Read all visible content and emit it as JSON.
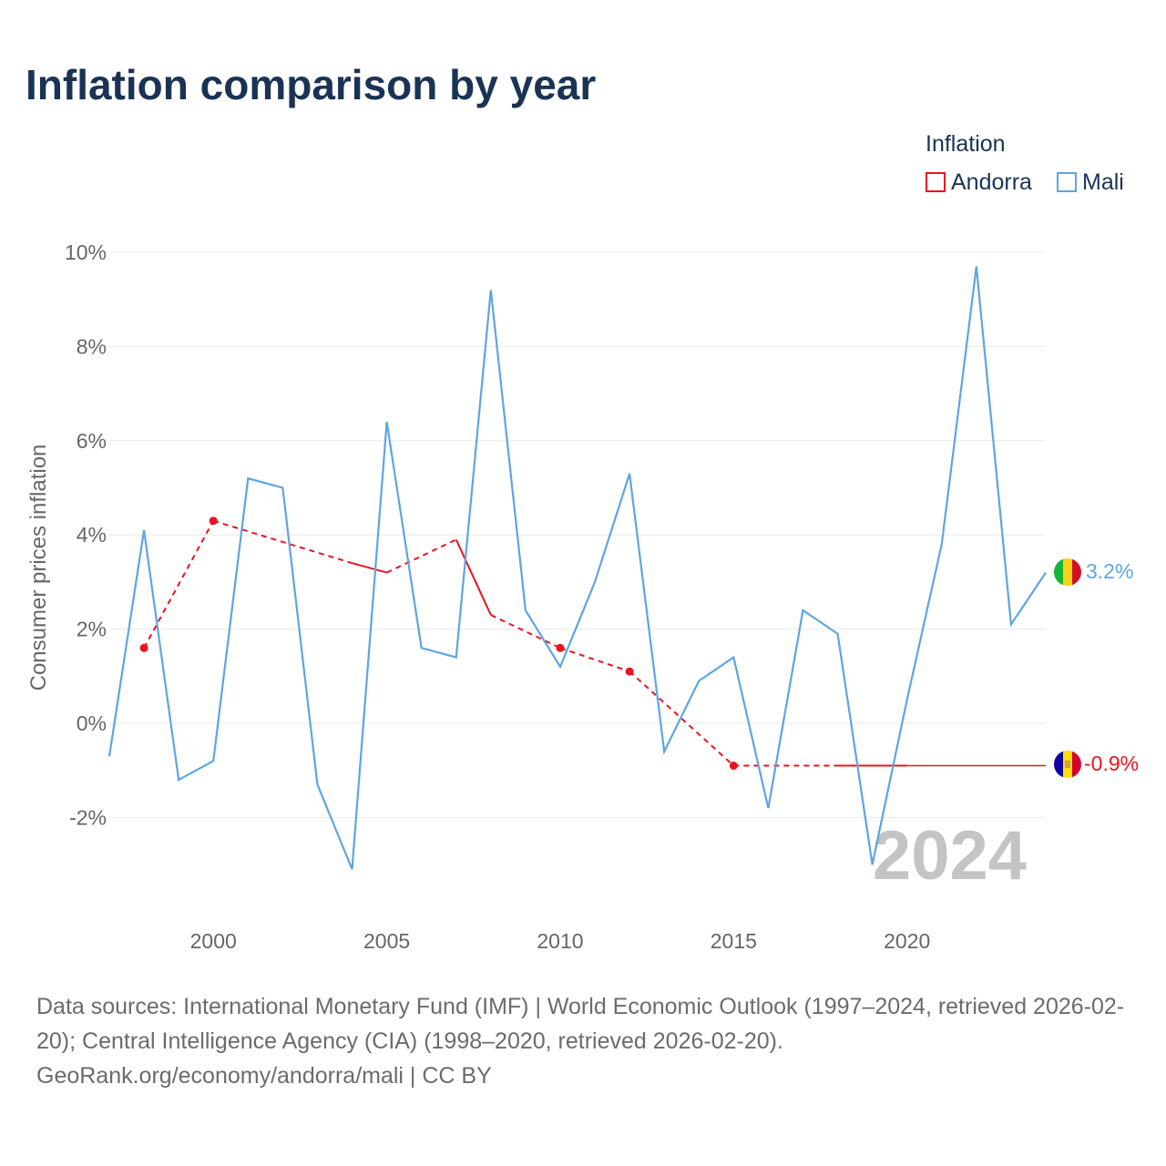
{
  "title": "Inflation comparison by year",
  "legend": {
    "title": "Inflation",
    "items": [
      {
        "label": "Andorra",
        "color": "#e8141e"
      },
      {
        "label": "Mali",
        "color": "#5da5e3"
      }
    ]
  },
  "chart_data": {
    "type": "line",
    "ylabel": "Consumer prices inflation",
    "xlabel": "",
    "xlim": [
      1997,
      2024
    ],
    "ylim": [
      -4,
      10
    ],
    "x_ticks": [
      2000,
      2005,
      2010,
      2015,
      2020
    ],
    "y_ticks": [
      -2,
      0,
      2,
      4,
      6,
      8,
      10
    ],
    "y_tick_labels": [
      "-2%",
      "0%",
      "2%",
      "4%",
      "6%",
      "8%",
      "10%"
    ],
    "year_watermark": "2024",
    "series": [
      {
        "name": "Mali",
        "color": "#5da5e3",
        "points": [
          [
            1997,
            -0.7
          ],
          [
            1998,
            4.1
          ],
          [
            1999,
            -1.2
          ],
          [
            2000,
            -0.8
          ],
          [
            2001,
            5.2
          ],
          [
            2002,
            5.0
          ],
          [
            2003,
            -1.3
          ],
          [
            2004,
            -3.1
          ],
          [
            2005,
            6.4
          ],
          [
            2006,
            1.6
          ],
          [
            2007,
            1.4
          ],
          [
            2008,
            9.2
          ],
          [
            2009,
            2.4
          ],
          [
            2010,
            1.2
          ],
          [
            2011,
            3.0
          ],
          [
            2012,
            5.3
          ],
          [
            2013,
            -0.6
          ],
          [
            2014,
            0.9
          ],
          [
            2015,
            1.4
          ],
          [
            2016,
            -1.8
          ],
          [
            2017,
            2.4
          ],
          [
            2018,
            1.9
          ],
          [
            2019,
            -3.0
          ],
          [
            2020,
            0.5
          ],
          [
            2021,
            3.8
          ],
          [
            2022,
            9.7
          ],
          [
            2023,
            2.1
          ],
          [
            2024,
            3.2
          ]
        ],
        "end_label": "3.2%"
      },
      {
        "name": "Andorra",
        "color": "#e8141e",
        "points": [
          [
            1998,
            1.6
          ],
          [
            2000,
            4.3
          ],
          [
            2004,
            3.4
          ],
          [
            2005,
            3.2
          ],
          [
            2007,
            3.9
          ],
          [
            2008,
            2.3
          ],
          [
            2010,
            1.6
          ],
          [
            2012,
            1.1
          ],
          [
            2015,
            -0.9
          ],
          [
            2018,
            -0.9
          ],
          [
            2020,
            -0.9
          ],
          [
            2024,
            -0.9
          ]
        ],
        "markers": [
          1998,
          2000,
          2010,
          2012,
          2015
        ],
        "end_label": "-0.9%"
      }
    ]
  },
  "footer": {
    "sources": "Data sources: International Monetary Fund (IMF) | World Economic Outlook (1997–2024, retrieved 2026-02-20); Central Intelligence Agency (CIA) (1998–2020, retrieved 2026-02-20).",
    "credit": "GeoRank.org/economy/andorra/mali | CC BY"
  }
}
